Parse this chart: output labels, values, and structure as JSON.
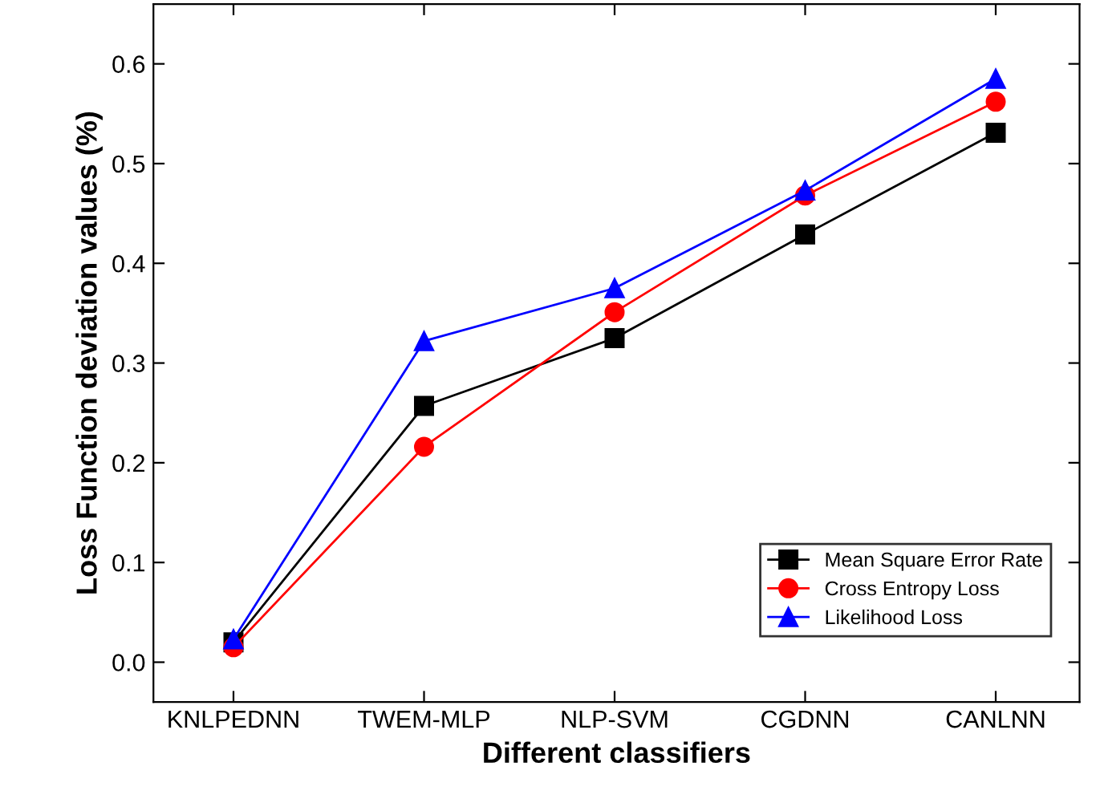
{
  "chart_data": {
    "type": "line",
    "xlabel": "Different classifiers",
    "ylabel": "Loss Function deviation values (%)",
    "categories": [
      "KNLPEDNN",
      "TWEM-MLP",
      "NLP-SVM",
      "CGDNN",
      "CANLNN"
    ],
    "series": [
      {
        "name": "Mean Square Error Rate",
        "color": "#000000",
        "marker": "square",
        "values": [
          0.02,
          0.257,
          0.325,
          0.429,
          0.531
        ]
      },
      {
        "name": "Cross Entropy Loss",
        "color": "#ff0000",
        "marker": "circle",
        "values": [
          0.015,
          0.216,
          0.351,
          0.468,
          0.562
        ]
      },
      {
        "name": "Likelihood Loss",
        "color": "#0000ff",
        "marker": "triangle",
        "values": [
          0.023,
          0.322,
          0.375,
          0.473,
          0.585
        ]
      }
    ],
    "ylim": [
      -0.04,
      0.66
    ],
    "yticks": [
      {
        "value": 0,
        "label": "0.0"
      },
      0.1,
      0.2,
      0.3,
      0.4,
      0.5,
      0.6
    ],
    "grid": false,
    "legend": "bottom right"
  }
}
